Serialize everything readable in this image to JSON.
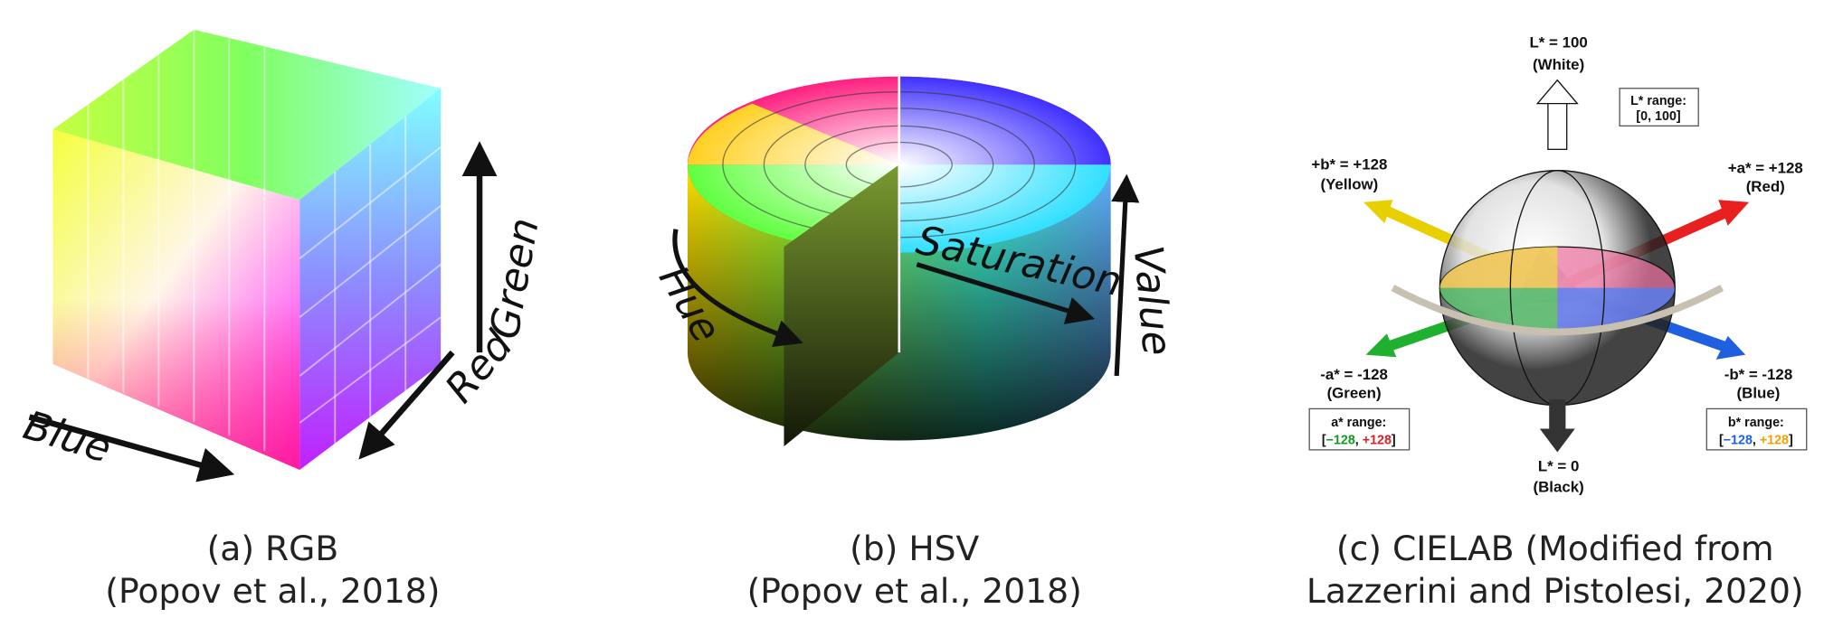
{
  "panels": [
    {
      "labels": {
        "green": "Green",
        "red": "Red",
        "blue": "Blue"
      },
      "caption": [
        "(a) RGB",
        "(Popov et al., 2018)"
      ]
    },
    {
      "labels": {
        "hue": "Hue",
        "saturation": "Saturation",
        "value": "Value"
      },
      "caption": [
        "(b) HSV",
        "(Popov et al., 2018)"
      ]
    },
    {
      "labels": {
        "l_top": [
          "L* = 100",
          "(White)"
        ],
        "l_range": [
          "L* range:",
          "[0, 100]"
        ],
        "b_pos": [
          "+b* = +128",
          "(Yellow)"
        ],
        "a_pos": [
          "+a* = +128",
          "(Red)"
        ],
        "a_neg": [
          "-a* = -128",
          "(Green)"
        ],
        "b_neg": [
          "-b* = -128",
          "(Blue)"
        ],
        "a_range": [
          "a* range:",
          [
            "[",
            "−128",
            ", ",
            "+128",
            "]"
          ]
        ],
        "b_range": [
          "b* range:",
          [
            "[",
            "−128",
            ", ",
            "+128",
            "]"
          ]
        ],
        "l_bottom": [
          "L* = 0",
          "(Black)"
        ]
      },
      "caption": [
        "(c) CIELAB (Modified from",
        "Lazzerini and Pistolesi, 2020)"
      ]
    }
  ]
}
